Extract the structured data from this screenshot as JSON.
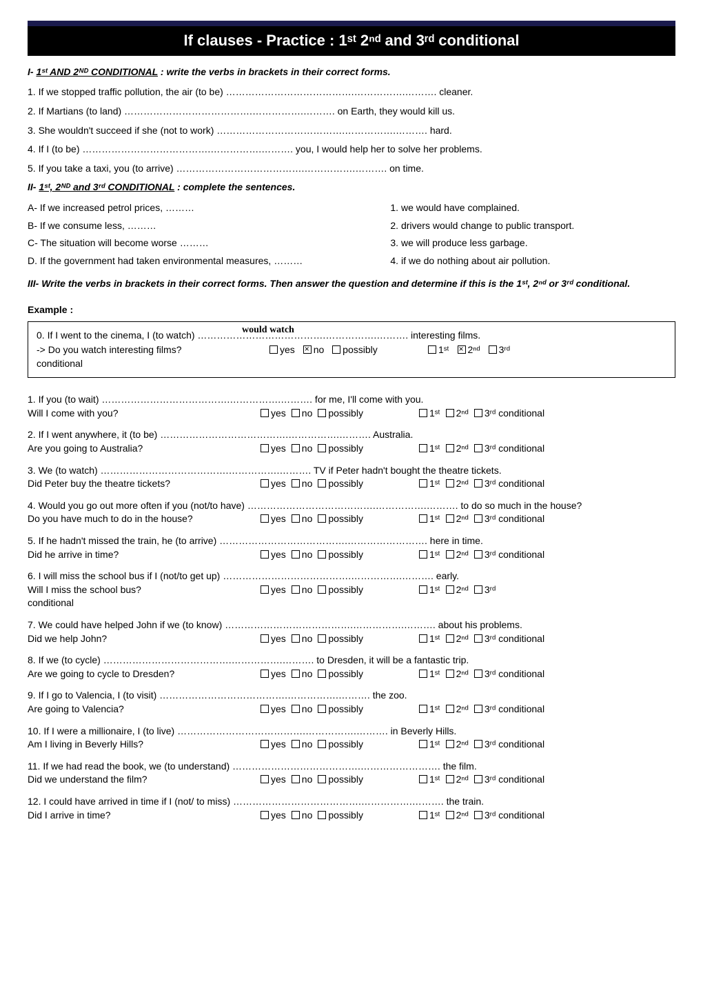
{
  "title": "If clauses - Practice : 1ˢᵗ 2ⁿᵈ and 3ʳᵈ conditional",
  "sec1": {
    "head_prefix": "I- ",
    "head_underline": "1ˢᵗ AND 2ᴺᴰ CONDITIONAL",
    "head_suffix": " : write the verbs in brackets in their correct forms.",
    "items": [
      "1. If we stopped traffic pollution, the air (to be) ………………………………….…………….………. cleaner.",
      "2. If Martians (to land) ………………………………….…………….………. on Earth, they would kill us.",
      "3. She wouldn't succeed if she  (not to work) ………………………………….…………….………. hard.",
      "4. If I (to be) ………………………………….…………….………. you, I would help her to solve her problems.",
      "5. If you take a taxi, you (to arrive) ………………………………….…………….………. on time."
    ]
  },
  "sec2": {
    "head_prefix": "II- ",
    "head_underline": "1ˢᵗ, 2ᴺᴰ and 3ʳᵈ CONDITIONAL",
    "head_suffix": " : complete the sentences.",
    "rows": [
      {
        "left": "A- If we increased petrol prices, ………",
        "right": "1. we would have complained."
      },
      {
        "left": "B- If we consume less, ………",
        "right": "2. drivers would change to public transport."
      },
      {
        "left": "C- The situation will become worse ………",
        "right": "3. we will produce less garbage."
      },
      {
        "left": "D. If the government had taken environmental measures, ………",
        "right": "4. if we do nothing about air pollution."
      }
    ]
  },
  "sec3": {
    "head": "III- Write the verbs in brackets in their correct forms. Then answer the question and determine if this is the 1ˢᵗ, 2ⁿᵈ or 3ʳᵈ conditional.",
    "example_label": "Example  :",
    "example_hand": "would watch",
    "example_line1": "0. If I went to the cinema, I  (to watch) ………………………………….…………….………. interesting films.",
    "example_prompt": "-> Do you watch interesting films?",
    "cond_word": "conditional",
    "yn": {
      "yes": "yes",
      "no": "no",
      "possibly": "possibly"
    },
    "cond": {
      "c1": "1ˢᵗ",
      "c2": "2ⁿᵈ",
      "c3": "3ʳᵈ"
    },
    "questions": [
      {
        "line1": "1. If you (to wait) ………………………………….…………….………. for me, I'll come with you.",
        "prompt": "Will I come with you?"
      },
      {
        "line1": "2. If I went anywhere, it (to be) ………………………………….…………….………. Australia.",
        "prompt": "Are you going to Australia?"
      },
      {
        "line1": "3. We (to watch) ………………………………….…………….………. TV if Peter hadn't bought the theatre tickets.",
        "prompt": "Did Peter buy the theatre tickets?"
      },
      {
        "line1": "4. Would you go out more often if you (not/to have) ………………………………….…………….………. to do so much in the house?",
        "prompt": "Do you have much to do in the house?"
      },
      {
        "line1": "5. If he hadn't missed the train, he (to arrive) ………………………………….……………………. here in time.",
        "prompt": "Did he arrive in time?"
      },
      {
        "line1": "6. I will miss the school bus if I (not/to get up) ………………………………….…………….……….  early.",
        "prompt": "Will I miss the school bus?",
        "split_cond": true
      },
      {
        "line1": "7. We could have helped John if we (to know) ………………………………….…………….………. about his problems.",
        "prompt": "Did we help John?"
      },
      {
        "line1": "8. If we (to cycle) ………………………………….…………….……….  to Dresden, it will be a fantastic trip.",
        "prompt": "Are we going to cycle to Dresden?"
      },
      {
        "line1": "9. If I go to Valencia, I  (to visit) ………………………………….…………….………. the zoo.",
        "prompt": "Are going to Valencia?"
      },
      {
        "line1": "10. If I were a millionaire, I (to live) ………………………………….…………….………. in Beverly Hills.",
        "prompt": "Am I living in Beverly Hills?"
      },
      {
        "line1": "11. If we had read the book, we (to understand) ………………………………….……………………. the film.",
        "prompt": " Did we understand the film?"
      },
      {
        "line1": "12. I could have arrived in time if I (not/ to miss) ………………………………….…………….………. the train.",
        "prompt": "Did I arrive in time?"
      }
    ]
  }
}
